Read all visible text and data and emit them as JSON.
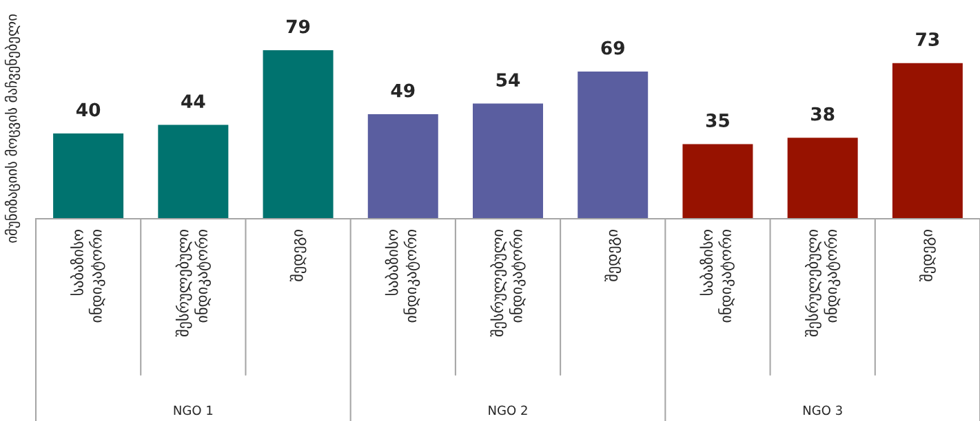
{
  "chart_data": {
    "type": "bar",
    "ylabel": "იმუნიზაციის მოცვის მაჩვენებელი",
    "categories": [
      "საბაზისო ინდიკატორი",
      "შესრულებული ინდიკატორი",
      "შედეგი",
      "საბაზისო ინდიკატორი",
      "შესრულებული ინდიკატორი",
      "შედეგი",
      "საბაზისო ინდიკატორი",
      "შესრულებული ინდიკატორი",
      "შედეგი"
    ],
    "series": [
      {
        "color": "#00736f",
        "values": [
          40,
          44,
          79,
          null,
          null,
          null,
          null,
          null,
          null
        ]
      },
      {
        "color": "#5a5ea0",
        "values": [
          null,
          null,
          null,
          49,
          54,
          69,
          null,
          null,
          null
        ]
      },
      {
        "color": "#971200",
        "values": [
          null,
          null,
          null,
          null,
          null,
          null,
          35,
          38,
          73
        ]
      }
    ],
    "annotations": [
      "NGO 1",
      "NGO 2",
      "NGO 3"
    ],
    "data_labels": true
  }
}
